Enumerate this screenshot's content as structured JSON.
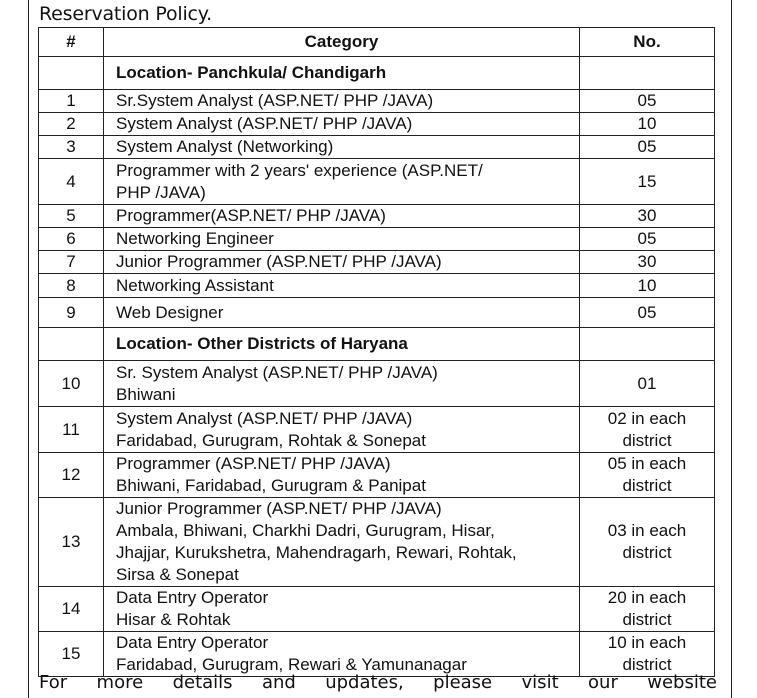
{
  "title": "Reservation Policy.",
  "table": {
    "headers": [
      "#",
      "Category",
      "No."
    ],
    "sections": [
      {
        "location": "Location- Panchkula/ Chandigarh",
        "rows": [
          {
            "num": "1",
            "category": [
              "Sr.System Analyst (ASP.NET/ PHP /JAVA)"
            ],
            "count": [
              "05"
            ]
          },
          {
            "num": "2",
            "category": [
              "System Analyst (ASP.NET/ PHP /JAVA)"
            ],
            "count": [
              "10"
            ]
          },
          {
            "num": "3",
            "category": [
              "System Analyst (Networking)"
            ],
            "count": [
              "05"
            ]
          },
          {
            "num": "4",
            "category": [
              "Programmer with 2 years' experience (ASP.NET/",
              "PHP /JAVA)"
            ],
            "count": [
              "15"
            ]
          },
          {
            "num": "5",
            "category": [
              "Programmer(ASP.NET/ PHP /JAVA)"
            ],
            "count": [
              "30"
            ]
          },
          {
            "num": "6",
            "category": [
              "Networking Engineer"
            ],
            "count": [
              "05"
            ]
          },
          {
            "num": "7",
            "category": [
              "Junior Programmer (ASP.NET/ PHP /JAVA)"
            ],
            "count": [
              "30"
            ]
          },
          {
            "num": "8",
            "category": [
              "Networking Assistant"
            ],
            "count": [
              "10"
            ]
          },
          {
            "num": "9",
            "category": [
              "Web Designer"
            ],
            "count": [
              "05"
            ]
          }
        ]
      },
      {
        "location": "Location- Other Districts of Haryana",
        "rows": [
          {
            "num": "10",
            "category": [
              "Sr. System Analyst (ASP.NET/ PHP /JAVA)",
              "Bhiwani"
            ],
            "count": [
              "01"
            ]
          },
          {
            "num": "11",
            "category": [
              "System Analyst (ASP.NET/ PHP /JAVA)",
              "Faridabad, Gurugram, Rohtak & Sonepat"
            ],
            "count": [
              "02 in each",
              "district"
            ]
          },
          {
            "num": "12",
            "category": [
              "Programmer (ASP.NET/ PHP /JAVA)",
              "Bhiwani, Faridabad, Gurugram & Panipat"
            ],
            "count": [
              "05 in each",
              "district"
            ]
          },
          {
            "num": "13",
            "category": [
              "Junior Programmer (ASP.NET/ PHP /JAVA)",
              "Ambala, Bhiwani, Charkhi Dadri, Gurugram, Hisar,",
              "Jhajjar, Kurukshetra, Mahendragarh, Rewari, Rohtak,",
              "Sirsa & Sonepat"
            ],
            "count": [
              "03 in each",
              "district"
            ]
          },
          {
            "num": "14",
            "category": [
              "Data Entry Operator",
              "Hisar & Rohtak"
            ],
            "count": [
              "20 in each",
              "district"
            ]
          },
          {
            "num": "15",
            "category": [
              "Data Entry Operator",
              "Faridabad, Gurugram, Rewari & Yamunanagar"
            ],
            "count": [
              "10 in each",
              "district"
            ]
          }
        ]
      }
    ]
  },
  "footer": "For more details and updates, please visit our website"
}
